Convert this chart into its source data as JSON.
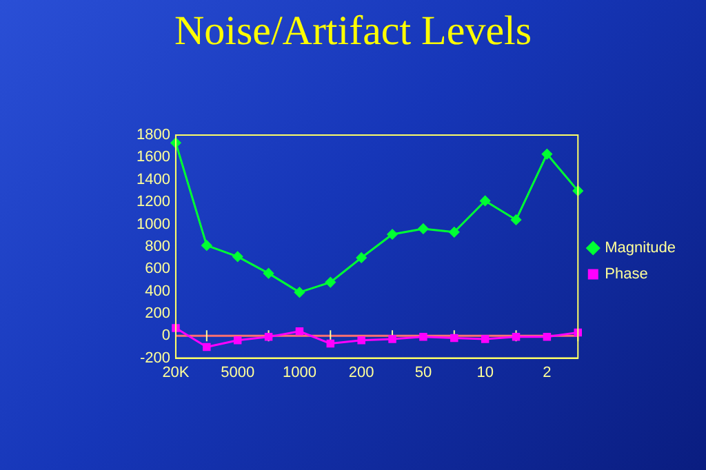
{
  "chart_data": {
    "type": "line",
    "title": "Noise/Artifact Levels",
    "categories": [
      "20K",
      null,
      "5000",
      null,
      "1000",
      null,
      "200",
      null,
      "50",
      null,
      "10",
      null,
      "2",
      null
    ],
    "series": [
      {
        "name": "Magnitude",
        "color": "#00ff33",
        "marker": "diamond",
        "values": [
          1730,
          810,
          710,
          560,
          390,
          480,
          700,
          910,
          960,
          930,
          1210,
          1040,
          1630,
          1300
        ]
      },
      {
        "name": "Phase",
        "color": "#ff00ff",
        "marker": "square",
        "values": [
          70,
          -100,
          -40,
          -10,
          40,
          -70,
          -40,
          -30,
          -10,
          -20,
          -30,
          -10,
          -10,
          30
        ]
      }
    ],
    "ylim": [
      -200,
      1800
    ],
    "yticks": [
      -200,
      0,
      200,
      400,
      600,
      800,
      1000,
      1200,
      1400,
      1600,
      1800
    ],
    "ref_lines": [
      {
        "axis": "y",
        "value": 0,
        "color": "#ff7070"
      }
    ],
    "grid": false,
    "legend": "right"
  }
}
